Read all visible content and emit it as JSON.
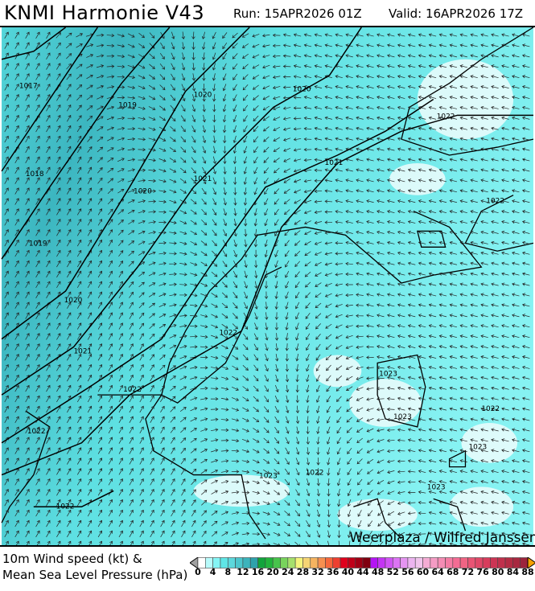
{
  "header": {
    "title": "KNMI Harmonie V43",
    "run": "Run: 15APR2026 01Z",
    "valid": "Valid: 16APR2026 17Z"
  },
  "legend": {
    "line1": "10m Wind speed (kt) &",
    "line2": "Mean Sea Level Pressure (hPa)",
    "ticks": [
      "0",
      "4",
      "8",
      "12",
      "16",
      "20",
      "24",
      "28",
      "32",
      "36",
      "40",
      "44",
      "48",
      "52",
      "56",
      "60",
      "64",
      "68",
      "72",
      "76",
      "80",
      "84",
      "88"
    ],
    "colors": [
      "#ffffff",
      "#b8fbfb",
      "#84f5f5",
      "#5fe6e6",
      "#5cd8dc",
      "#4cc6cc",
      "#3cb4bc",
      "#2ea2ac",
      "#12a43c",
      "#22b43c",
      "#48c44c",
      "#78d45c",
      "#a6e06c",
      "#f4f47c",
      "#f6d474",
      "#f6b460",
      "#f69050",
      "#f6683c",
      "#ee4030",
      "#e0001c",
      "#c00018",
      "#a00014",
      "#800010",
      "#b414f4",
      "#c434f4",
      "#d054f4",
      "#dc74f4",
      "#e494f0",
      "#ecb4f0",
      "#f0c4ec",
      "#f4acd4",
      "#f49cc4",
      "#f48cb4",
      "#f47ca4",
      "#f46c94",
      "#f06484",
      "#e85474",
      "#e04868",
      "#d83c5c",
      "#cc3454",
      "#c0304c",
      "#b42c44",
      "#a82840",
      "#9c243c"
    ],
    "under_color": "#a0a0a0",
    "over_color": "#f4a000"
  },
  "map": {
    "isobar_labels": [
      "1017",
      "1018",
      "1019",
      "1019",
      "1020",
      "1020",
      "1020",
      "1020",
      "1021",
      "1021",
      "1021",
      "1022",
      "1022",
      "1022",
      "1022",
      "1022",
      "1022",
      "1022",
      "1022",
      "1023",
      "1023",
      "1023",
      "1023",
      "1023"
    ],
    "watermark": "Weerplaza / Wilfred Janssen",
    "sea_color": "#5ee0e0"
  }
}
